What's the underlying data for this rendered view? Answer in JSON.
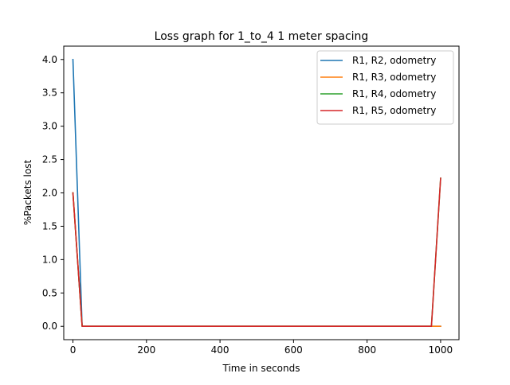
{
  "chart_data": {
    "type": "line",
    "title": "Loss graph for 1_to_4 1 meter spacing",
    "xlabel": "Time in seconds",
    "ylabel": "%Packets lost",
    "xlim": [
      -25,
      1050
    ],
    "ylim": [
      -0.2,
      4.2
    ],
    "x_ticks": [
      0,
      200,
      400,
      600,
      800,
      1000
    ],
    "y_ticks": [
      0.0,
      0.5,
      1.0,
      1.5,
      2.0,
      2.5,
      3.0,
      3.5,
      4.0
    ],
    "x_tick_labels": [
      "0",
      "200",
      "400",
      "600",
      "800",
      "1000"
    ],
    "y_tick_labels": [
      "0.0",
      "0.5",
      "1.0",
      "1.5",
      "2.0",
      "2.5",
      "3.0",
      "3.5",
      "4.0"
    ],
    "grid": false,
    "legend_position": "top-right",
    "series": [
      {
        "name": "R1, R2, odometry",
        "color": "#1f77b4",
        "x": [
          0,
          25,
          975,
          1000
        ],
        "y": [
          4.0,
          0.0,
          0.0,
          0.0
        ]
      },
      {
        "name": "R1, R3, odometry",
        "color": "#ff7f0e",
        "x": [
          0,
          25,
          975,
          1000
        ],
        "y": [
          2.0,
          0.0,
          0.0,
          0.0
        ]
      },
      {
        "name": "R1, R4, odometry",
        "color": "#2ca02c",
        "x": [
          0,
          25,
          975,
          1000
        ],
        "y": [
          2.0,
          0.0,
          0.0,
          2.22
        ]
      },
      {
        "name": "R1, R5, odometry",
        "color": "#d62728",
        "x": [
          0,
          25,
          975,
          1000
        ],
        "y": [
          2.0,
          0.0,
          0.0,
          2.22
        ]
      }
    ]
  }
}
